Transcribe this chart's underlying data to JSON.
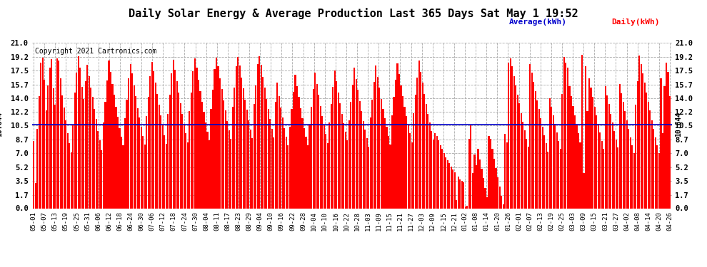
{
  "title": "Daily Solar Energy & Average Production Last 365 Days Sat May 1 19:52",
  "copyright": "Copyright 2021 Cartronics.com",
  "average_value": 10.644,
  "average_label": "10.644",
  "average_color": "#0000cc",
  "bar_color": "#ff0000",
  "legend_average": "Average(kWh)",
  "legend_daily": "Daily(kWh)",
  "yticks": [
    0.0,
    1.7,
    3.5,
    5.2,
    7.0,
    8.7,
    10.5,
    12.2,
    14.0,
    15.7,
    17.5,
    19.2,
    21.0
  ],
  "ymin": 0.0,
  "ymax": 21.0,
  "background_color": "#ffffff",
  "grid_color": "#aaaaaa",
  "title_fontsize": 11,
  "copyright_fontsize": 7,
  "bar_values": [
    8.5,
    3.2,
    10.1,
    14.2,
    18.5,
    19.1,
    16.3,
    12.4,
    15.6,
    17.8,
    18.9,
    15.2,
    13.1,
    19.0,
    18.7,
    16.5,
    14.3,
    12.8,
    11.2,
    9.5,
    8.3,
    7.1,
    10.5,
    14.7,
    17.2,
    19.3,
    17.8,
    15.4,
    13.9,
    16.1,
    18.2,
    16.8,
    15.3,
    14.1,
    12.6,
    11.3,
    9.8,
    8.6,
    7.4,
    10.9,
    13.5,
    16.2,
    18.7,
    17.3,
    15.8,
    14.4,
    12.9,
    11.6,
    10.2,
    9.1,
    8.0,
    11.4,
    13.8,
    16.5,
    18.3,
    17.1,
    15.6,
    14.2,
    12.7,
    11.5,
    10.3,
    9.2,
    8.1,
    11.7,
    14.1,
    16.8,
    18.6,
    17.4,
    15.9,
    14.5,
    13.1,
    11.8,
    10.5,
    9.3,
    8.2,
    12.0,
    14.4,
    17.1,
    18.8,
    17.6,
    16.1,
    14.7,
    13.3,
    12.0,
    10.7,
    9.5,
    8.4,
    12.3,
    14.7,
    17.4,
    19.0,
    17.8,
    16.3,
    14.9,
    13.5,
    12.2,
    10.9,
    9.7,
    8.6,
    12.6,
    15.0,
    17.7,
    19.1,
    18.0,
    16.5,
    15.1,
    13.7,
    12.4,
    11.1,
    9.9,
    8.8,
    12.9,
    15.3,
    18.0,
    19.2,
    18.1,
    16.6,
    15.2,
    13.8,
    12.5,
    11.2,
    10.0,
    8.9,
    13.2,
    15.6,
    18.3,
    19.3,
    18.2,
    16.7,
    15.3,
    13.9,
    12.6,
    11.3,
    10.1,
    9.0,
    13.5,
    15.9,
    14.2,
    12.8,
    11.5,
    10.2,
    9.1,
    8.0,
    10.3,
    12.6,
    14.8,
    16.9,
    15.5,
    14.1,
    12.7,
    11.4,
    10.2,
    9.1,
    8.0,
    10.6,
    12.9,
    15.1,
    17.2,
    15.8,
    14.4,
    13.0,
    11.7,
    10.5,
    9.4,
    8.3,
    10.9,
    13.2,
    15.4,
    17.5,
    16.1,
    14.7,
    13.3,
    12.0,
    10.8,
    9.7,
    8.6,
    11.2,
    13.5,
    15.7,
    17.8,
    16.4,
    15.0,
    13.6,
    12.3,
    11.1,
    10.0,
    8.9,
    7.8,
    11.5,
    13.8,
    16.0,
    18.1,
    16.7,
    15.3,
    13.9,
    12.6,
    11.4,
    10.3,
    9.2,
    8.1,
    11.8,
    14.1,
    16.3,
    18.4,
    17.0,
    15.6,
    14.2,
    12.9,
    11.7,
    10.6,
    9.5,
    8.4,
    12.1,
    14.4,
    16.6,
    18.7,
    17.3,
    15.9,
    14.5,
    13.2,
    12.0,
    10.9,
    9.8,
    8.7,
    9.5,
    9.2,
    8.6,
    8.0,
    7.5,
    7.0,
    6.5,
    6.1,
    5.7,
    5.3,
    4.9,
    4.6,
    1.0,
    4.0,
    3.7,
    3.5,
    3.3,
    0.2,
    0.3,
    8.8,
    10.5,
    4.5,
    6.8,
    5.5,
    7.5,
    6.2,
    5.0,
    3.8,
    2.6,
    1.4,
    9.2,
    8.8,
    7.5,
    6.3,
    5.1,
    3.9,
    2.8,
    1.6,
    0.5,
    9.4,
    8.4,
    18.5,
    19.0,
    18.0,
    16.8,
    15.6,
    14.4,
    13.3,
    12.1,
    11.0,
    9.9,
    8.8,
    7.8,
    18.3,
    17.2,
    16.0,
    14.9,
    13.7,
    12.6,
    11.4,
    10.3,
    9.3,
    8.3,
    7.2,
    14.0,
    12.9,
    11.8,
    10.7,
    9.6,
    8.5,
    7.5,
    14.5,
    19.2,
    18.5,
    17.8,
    15.5,
    14.2,
    13.0,
    11.8,
    10.6,
    9.5,
    8.4,
    19.5,
    4.5,
    18.0,
    12.3,
    16.5,
    15.3,
    14.1,
    12.9,
    11.8,
    10.7,
    9.6,
    8.5,
    7.5,
    15.5,
    14.3,
    13.2,
    12.0,
    10.9,
    9.8,
    8.7,
    7.7,
    15.8,
    14.6,
    13.5,
    12.3,
    11.2,
    10.1,
    9.0,
    8.0,
    7.0,
    13.1,
    16.1,
    19.4,
    18.3,
    17.1,
    15.9,
    14.7,
    13.5,
    12.4,
    11.2,
    10.1,
    9.0,
    8.0,
    7.0,
    16.5,
    9.5,
    15.5,
    18.5,
    17.3,
    14.2
  ],
  "x_labels": [
    "05-01",
    "05-07",
    "05-13",
    "05-19",
    "05-25",
    "05-31",
    "06-06",
    "06-12",
    "06-18",
    "06-24",
    "06-30",
    "07-06",
    "07-12",
    "07-18",
    "07-24",
    "07-30",
    "08-04",
    "08-11",
    "08-17",
    "08-23",
    "08-29",
    "09-04",
    "09-10",
    "09-16",
    "09-22",
    "09-28",
    "10-04",
    "10-10",
    "10-16",
    "10-22",
    "10-28",
    "11-03",
    "11-09",
    "11-15",
    "11-21",
    "11-27",
    "12-03",
    "12-09",
    "12-15",
    "12-21",
    "01-02",
    "01-08",
    "01-14",
    "01-20",
    "01-26",
    "02-01",
    "02-07",
    "02-13",
    "02-19",
    "02-25",
    "03-03",
    "03-09",
    "03-15",
    "03-21",
    "03-27",
    "04-02",
    "04-08",
    "04-14",
    "04-20",
    "04-26"
  ]
}
